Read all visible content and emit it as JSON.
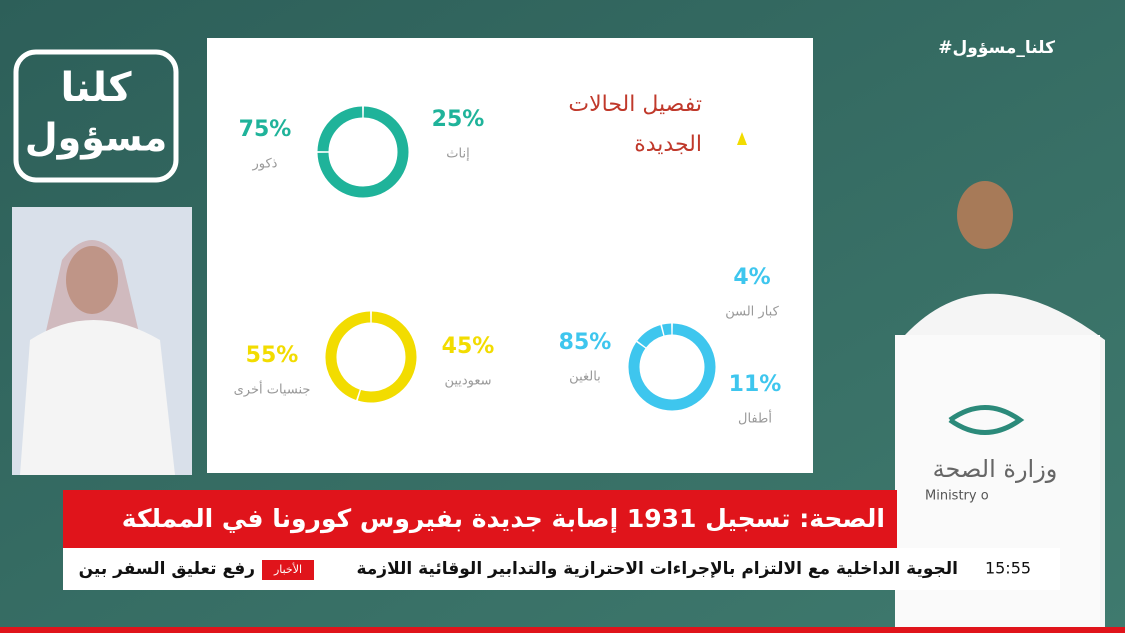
{
  "hashtag": "#كلنا_مسؤول",
  "logo": {
    "line1": "كلنا",
    "line2": "مسؤول"
  },
  "slide": {
    "title_line1": "تفصيل الحالات",
    "title_line2": "الجديدة",
    "charts": [
      {
        "type": "donut",
        "color": "#1fb39a",
        "segments": [
          {
            "label": "ذكور",
            "value": 75,
            "value_label": "75%"
          },
          {
            "label": "إناث",
            "value": 25,
            "value_label": "25%"
          }
        ]
      },
      {
        "type": "donut",
        "color": "#f2dc00",
        "segments": [
          {
            "label": "جنسيات أخرى",
            "value": 55,
            "value_label": "55%"
          },
          {
            "label": "سعوديين",
            "value": 45,
            "value_label": "45%"
          }
        ]
      },
      {
        "type": "donut",
        "color": "#3ec6ee",
        "segments": [
          {
            "label": "بالغين",
            "value": 85,
            "value_label": "85%"
          },
          {
            "label": "أطفال",
            "value": 11,
            "value_label": "11%"
          },
          {
            "label": "كبار السن",
            "value": 4,
            "value_label": "4%"
          }
        ]
      }
    ]
  },
  "podium": {
    "name": "وزارة الصحة",
    "english": "Ministry o"
  },
  "headline": "الصحة: تسجيل 1931 إصابة جديدة بفيروس كورونا في المملكة",
  "ticker": {
    "text": "الجوية الداخلية مع الالتزام بالإجراءات الاحترازية والتدابير الوقائية اللازمة",
    "badge": "الأخبار",
    "next": "رفع تعليق السفر بين",
    "time": "15:55"
  }
}
